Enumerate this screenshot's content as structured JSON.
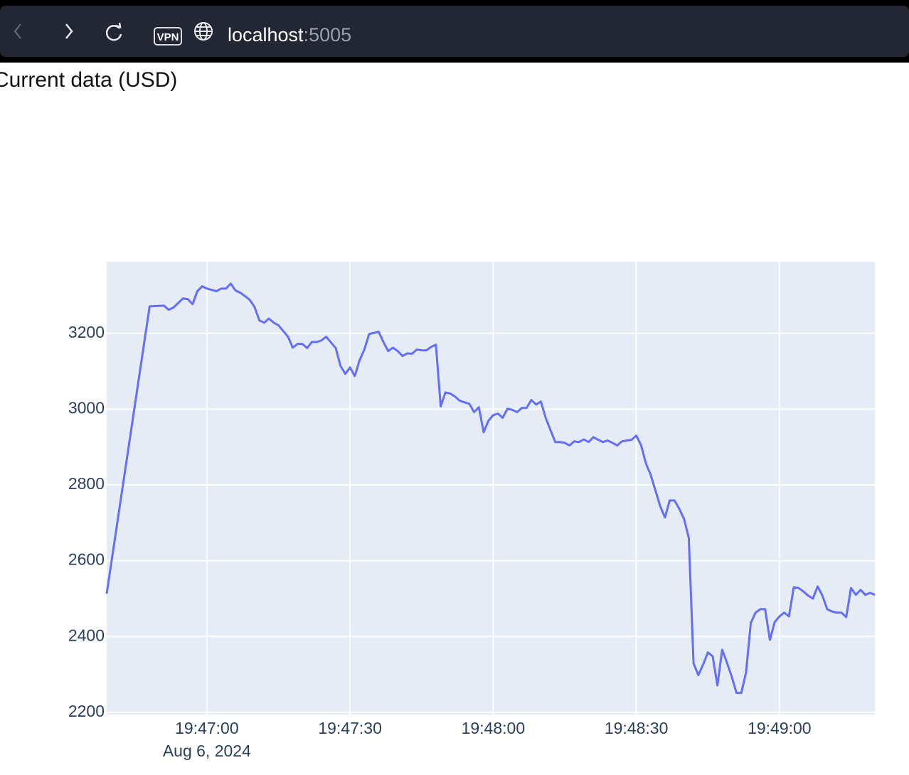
{
  "browser": {
    "vpn_badge": "VPN",
    "url_host": "localhost",
    "url_port": ":5005"
  },
  "page": {
    "heading": "Current data (USD)"
  },
  "chart_data": {
    "type": "line",
    "color": "#636efa",
    "grid": true,
    "x": [
      "2024-08-06 19:46:39",
      "2024-08-06 19:46:48",
      "2024-08-06 19:46:51",
      "2024-08-06 19:46:52",
      "2024-08-06 19:46:53",
      "2024-08-06 19:46:55",
      "2024-08-06 19:46:56",
      "2024-08-06 19:46:57",
      "2024-08-06 19:46:58",
      "2024-08-06 19:46:59",
      "2024-08-06 19:47:00",
      "2024-08-06 19:47:02",
      "2024-08-06 19:47:03",
      "2024-08-06 19:47:04",
      "2024-08-06 19:47:05",
      "2024-08-06 19:47:06",
      "2024-08-06 19:47:07",
      "2024-08-06 19:47:08",
      "2024-08-06 19:47:09",
      "2024-08-06 19:47:10",
      "2024-08-06 19:47:11",
      "2024-08-06 19:47:12",
      "2024-08-06 19:47:13",
      "2024-08-06 19:47:14",
      "2024-08-06 19:47:15",
      "2024-08-06 19:47:16",
      "2024-08-06 19:47:17",
      "2024-08-06 19:47:18",
      "2024-08-06 19:47:19",
      "2024-08-06 19:47:20",
      "2024-08-06 19:47:21",
      "2024-08-06 19:47:22",
      "2024-08-06 19:47:23",
      "2024-08-06 19:47:24",
      "2024-08-06 19:47:25",
      "2024-08-06 19:47:26",
      "2024-08-06 19:47:27",
      "2024-08-06 19:47:28",
      "2024-08-06 19:47:29",
      "2024-08-06 19:47:30",
      "2024-08-06 19:47:31",
      "2024-08-06 19:47:32",
      "2024-08-06 19:47:33",
      "2024-08-06 19:47:34",
      "2024-08-06 19:47:36",
      "2024-08-06 19:47:37",
      "2024-08-06 19:47:38",
      "2024-08-06 19:47:39",
      "2024-08-06 19:47:40",
      "2024-08-06 19:47:41",
      "2024-08-06 19:47:42",
      "2024-08-06 19:47:43",
      "2024-08-06 19:47:44",
      "2024-08-06 19:47:45",
      "2024-08-06 19:47:46",
      "2024-08-06 19:47:47",
      "2024-08-06 19:47:48",
      "2024-08-06 19:47:49",
      "2024-08-06 19:47:50",
      "2024-08-06 19:47:51",
      "2024-08-06 19:47:52",
      "2024-08-06 19:47:53",
      "2024-08-06 19:47:54",
      "2024-08-06 19:47:55",
      "2024-08-06 19:47:56",
      "2024-08-06 19:47:57",
      "2024-08-06 19:47:58",
      "2024-08-06 19:47:59",
      "2024-08-06 19:48:00",
      "2024-08-06 19:48:01",
      "2024-08-06 19:48:02",
      "2024-08-06 19:48:03",
      "2024-08-06 19:48:04",
      "2024-08-06 19:48:05",
      "2024-08-06 19:48:06",
      "2024-08-06 19:48:07",
      "2024-08-06 19:48:08",
      "2024-08-06 19:48:09",
      "2024-08-06 19:48:10",
      "2024-08-06 19:48:11",
      "2024-08-06 19:48:12",
      "2024-08-06 19:48:13",
      "2024-08-06 19:48:14",
      "2024-08-06 19:48:15",
      "2024-08-06 19:48:16",
      "2024-08-06 19:48:17",
      "2024-08-06 19:48:18",
      "2024-08-06 19:48:19",
      "2024-08-06 19:48:20",
      "2024-08-06 19:48:21",
      "2024-08-06 19:48:22",
      "2024-08-06 19:48:23",
      "2024-08-06 19:48:24",
      "2024-08-06 19:48:25",
      "2024-08-06 19:48:26",
      "2024-08-06 19:48:27",
      "2024-08-06 19:48:28",
      "2024-08-06 19:48:29",
      "2024-08-06 19:48:30",
      "2024-08-06 19:48:31",
      "2024-08-06 19:48:32",
      "2024-08-06 19:48:33",
      "2024-08-06 19:48:35",
      "2024-08-06 19:48:36",
      "2024-08-06 19:48:37",
      "2024-08-06 19:48:38",
      "2024-08-06 19:48:39",
      "2024-08-06 19:48:40",
      "2024-08-06 19:48:41",
      "2024-08-06 19:48:42",
      "2024-08-06 19:48:43",
      "2024-08-06 19:48:44",
      "2024-08-06 19:48:45",
      "2024-08-06 19:48:46",
      "2024-08-06 19:48:47",
      "2024-08-06 19:48:48",
      "2024-08-06 19:48:49",
      "2024-08-06 19:48:50",
      "2024-08-06 19:48:51",
      "2024-08-06 19:48:52",
      "2024-08-06 19:48:53",
      "2024-08-06 19:48:54",
      "2024-08-06 19:48:55",
      "2024-08-06 19:48:56",
      "2024-08-06 19:48:57",
      "2024-08-06 19:48:58",
      "2024-08-06 19:48:59",
      "2024-08-06 19:49:00",
      "2024-08-06 19:49:01",
      "2024-08-06 19:49:02",
      "2024-08-06 19:49:03",
      "2024-08-06 19:49:04",
      "2024-08-06 19:49:05",
      "2024-08-06 19:49:06",
      "2024-08-06 19:49:07",
      "2024-08-06 19:49:08",
      "2024-08-06 19:49:09",
      "2024-08-06 19:49:10",
      "2024-08-06 19:49:11",
      "2024-08-06 19:49:12",
      "2024-08-06 19:49:13",
      "2024-08-06 19:49:14",
      "2024-08-06 19:49:15",
      "2024-08-06 19:49:16",
      "2024-08-06 19:49:17",
      "2024-08-06 19:49:18",
      "2024-08-06 19:49:19",
      "2024-08-06 19:49:20"
    ],
    "values": [
      2513,
      3271,
      3273,
      3262,
      3268,
      3292,
      3290,
      3277,
      3311,
      3324,
      3318,
      3311,
      3318,
      3318,
      3331,
      3313,
      3307,
      3298,
      3288,
      3269,
      3234,
      3228,
      3239,
      3228,
      3221,
      3206,
      3191,
      3162,
      3172,
      3172,
      3161,
      3177,
      3177,
      3181,
      3191,
      3176,
      3161,
      3114,
      3093,
      3110,
      3087,
      3129,
      3157,
      3198,
      3204,
      3177,
      3153,
      3162,
      3153,
      3140,
      3147,
      3146,
      3157,
      3155,
      3155,
      3164,
      3170,
      3007,
      3044,
      3041,
      3033,
      3022,
      3018,
      3014,
      2992,
      3005,
      2939,
      2969,
      2984,
      2988,
      2977,
      3001,
      2998,
      2992,
      3003,
      3003,
      3024,
      3012,
      3020,
      2977,
      2945,
      2913,
      2913,
      2911,
      2904,
      2915,
      2913,
      2920,
      2913,
      2926,
      2919,
      2913,
      2917,
      2911,
      2904,
      2915,
      2917,
      2919,
      2930,
      2905,
      2857,
      2827,
      2744,
      2714,
      2759,
      2759,
      2737,
      2710,
      2660,
      2329,
      2298,
      2326,
      2358,
      2348,
      2271,
      2365,
      2331,
      2294,
      2251,
      2251,
      2305,
      2436,
      2463,
      2472,
      2472,
      2391,
      2438,
      2453,
      2463,
      2453,
      2530,
      2528,
      2519,
      2508,
      2500,
      2532,
      2508,
      2472,
      2466,
      2463,
      2463,
      2451,
      2528,
      2510,
      2523,
      2510,
      2515,
      2510
    ],
    "xlim": [
      "2024-08-06 19:46:39",
      "2024-08-06 19:49:20"
    ],
    "xticks": [
      {
        "value": "2024-08-06 19:47:00",
        "label": "19:47:00"
      },
      {
        "value": "2024-08-06 19:47:30",
        "label": "19:47:30"
      },
      {
        "value": "2024-08-06 19:48:00",
        "label": "19:48:00"
      },
      {
        "value": "2024-08-06 19:48:30",
        "label": "19:48:30"
      },
      {
        "value": "2024-08-06 19:49:00",
        "label": "19:49:00"
      }
    ],
    "x_date_label": "Aug 6, 2024",
    "ylim": [
      2194,
      3389
    ],
    "yticks": [
      2200,
      2400,
      2600,
      2800,
      3000,
      3200
    ]
  }
}
